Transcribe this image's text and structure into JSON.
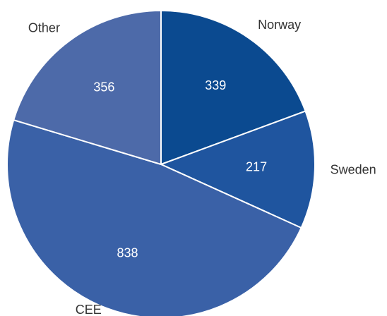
{
  "chart_data": {
    "type": "pie",
    "categories": [
      "Norway",
      "Sweden",
      "CEE",
      "Other"
    ],
    "values": [
      339,
      217,
      838,
      356
    ],
    "colors": [
      "#0b4a90",
      "#1f559f",
      "#3a61a7",
      "#4d6aa9"
    ],
    "start_angle": 0,
    "direction": "clockwise"
  }
}
